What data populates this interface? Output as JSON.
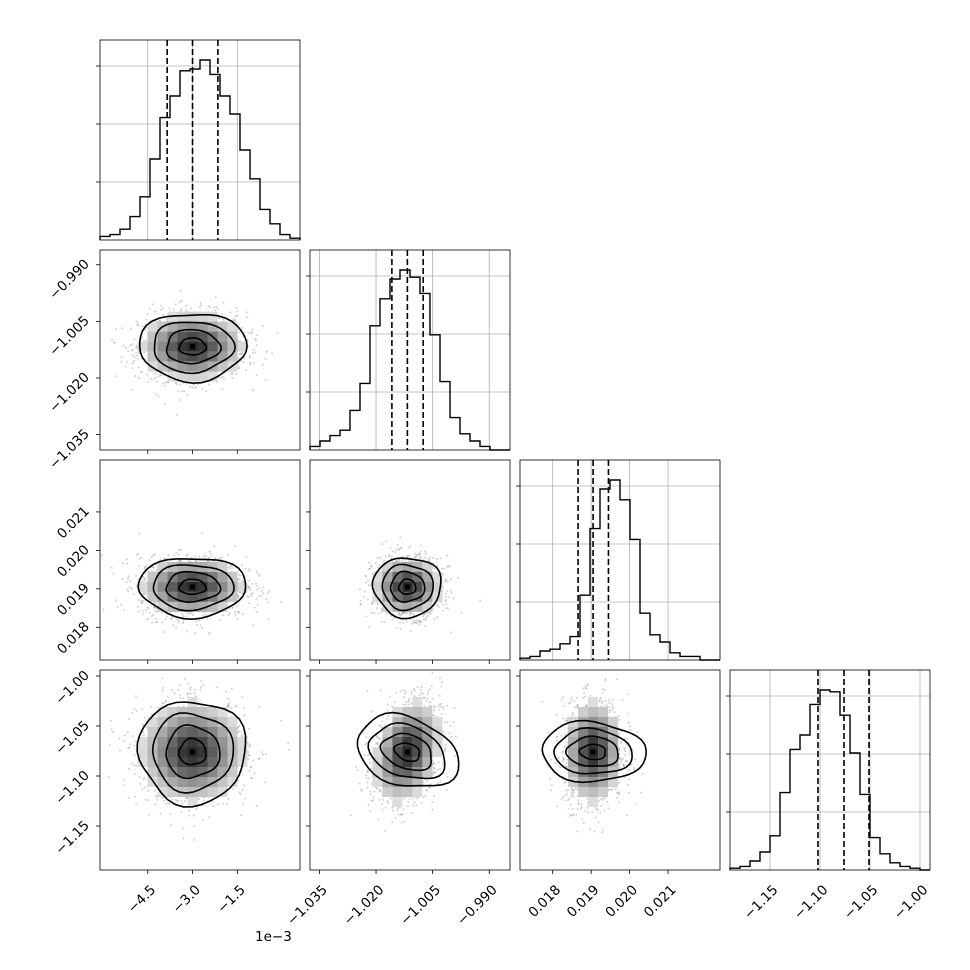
{
  "chart_data": {
    "type": "scatter",
    "subtype": "corner-plot",
    "grid": true,
    "parameters": [
      {
        "hist_range": [
          -6.1,
          0.6
        ],
        "quantiles": [
          -3.85,
          -3.0,
          -2.15
        ],
        "mean": -3.0,
        "sd": 0.9,
        "hist_counts": [
          2,
          3,
          6,
          13,
          24,
          45,
          68,
          80,
          94,
          95,
          100,
          92,
          80,
          70,
          50,
          34,
          17,
          9,
          3,
          1
        ]
      },
      {
        "hist_range": [
          -1.0375,
          -0.9845
        ],
        "quantiles": [
          -1.0158,
          -1.0117,
          -1.0075
        ],
        "mean": -1.0117,
        "sd": 0.0045,
        "hist_counts": [
          2,
          5,
          8,
          11,
          22,
          37,
          69,
          84,
          95,
          100,
          96,
          87,
          64,
          38,
          18,
          9,
          5,
          2,
          0,
          0
        ]
      },
      {
        "hist_range": [
          0.01715,
          0.02235
        ],
        "quantiles": [
          0.01866,
          0.01905,
          0.01945
        ],
        "mean": 0.01905,
        "sd": 0.00039,
        "hist_counts": [
          1,
          2,
          5,
          6,
          9,
          13,
          36,
          73,
          95,
          100,
          89,
          67,
          26,
          14,
          10,
          4,
          2,
          2,
          0,
          0
        ]
      },
      {
        "hist_range": [
          -1.19,
          -0.99
        ],
        "quantiles": [
          -1.102,
          -1.076,
          -1.051
        ],
        "mean": -1.076,
        "sd": 0.026,
        "hist_counts": [
          1,
          2,
          5,
          10,
          19,
          43,
          67,
          75,
          92,
          100,
          99,
          86,
          65,
          42,
          18,
          9,
          4,
          2,
          1,
          0
        ]
      }
    ],
    "correlations": {
      "1-0": 0.0,
      "2-0": 0.0,
      "2-1": 0.0,
      "3-0": 0.0,
      "3-1": 0.3,
      "3-2": 0.05
    },
    "x_tick_labels": [
      [
        "−4.5",
        "−3.0",
        "−1.5"
      ],
      [
        "−1.035",
        "−1.020",
        "−1.005",
        "−0.990"
      ],
      [
        "0.018",
        "0.019",
        "0.020",
        "0.021"
      ],
      [
        "−1.15",
        "−1.10",
        "−1.05",
        "−1.00"
      ]
    ],
    "y_tick_labels": [
      [],
      [
        "−0.990",
        "−1.005",
        "−1.020",
        "−1.035"
      ],
      [
        "0.021",
        "0.020",
        "0.019",
        "0.018"
      ],
      [
        "−1.00",
        "−1.05",
        "−1.10",
        "−1.15"
      ]
    ],
    "offset_label": "1e−3"
  }
}
